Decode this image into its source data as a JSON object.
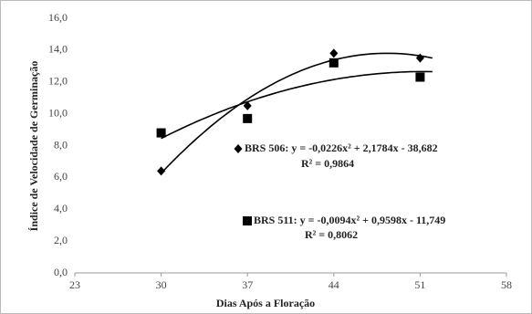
{
  "chart_data": {
    "type": "scatter",
    "x_label": "Dias Após a Floração",
    "y_label": "Índice de Velocidade de Germinação",
    "x": [
      30,
      37,
      44,
      51
    ],
    "series": [
      {
        "label": "BRS 506: y = -0,0226x² + 2,1784x - 38,682",
        "r2": "R² = 0,9864",
        "marker": "diamond",
        "color": "#000000",
        "values": [
          6.4,
          10.5,
          13.8,
          13.5
        ]
      },
      {
        "label": "BRS 511: y = -0,0094x² + 0,9598x - 11,749",
        "r2": "R² = 0,8062",
        "marker": "square",
        "color": "#000000",
        "values": [
          8.8,
          9.7,
          13.2,
          12.3
        ]
      }
    ],
    "trendline": "polynomial-2",
    "xlim": [
      23,
      58
    ],
    "xticks": [
      23,
      30,
      37,
      44,
      51,
      58
    ],
    "ylim": [
      0,
      16
    ],
    "yticks": [
      {
        "value": 0,
        "label": "0,0"
      },
      {
        "value": 2,
        "label": "2,0"
      },
      {
        "value": 4,
        "label": "4,0"
      },
      {
        "value": 6,
        "label": "6,0"
      },
      {
        "value": 8,
        "label": "8,0"
      },
      {
        "value": 10,
        "label": "10,0"
      },
      {
        "value": 12,
        "label": "12,0"
      },
      {
        "value": 14,
        "label": "14,0"
      },
      {
        "value": 16,
        "label": "16,0"
      }
    ],
    "grid": false
  }
}
